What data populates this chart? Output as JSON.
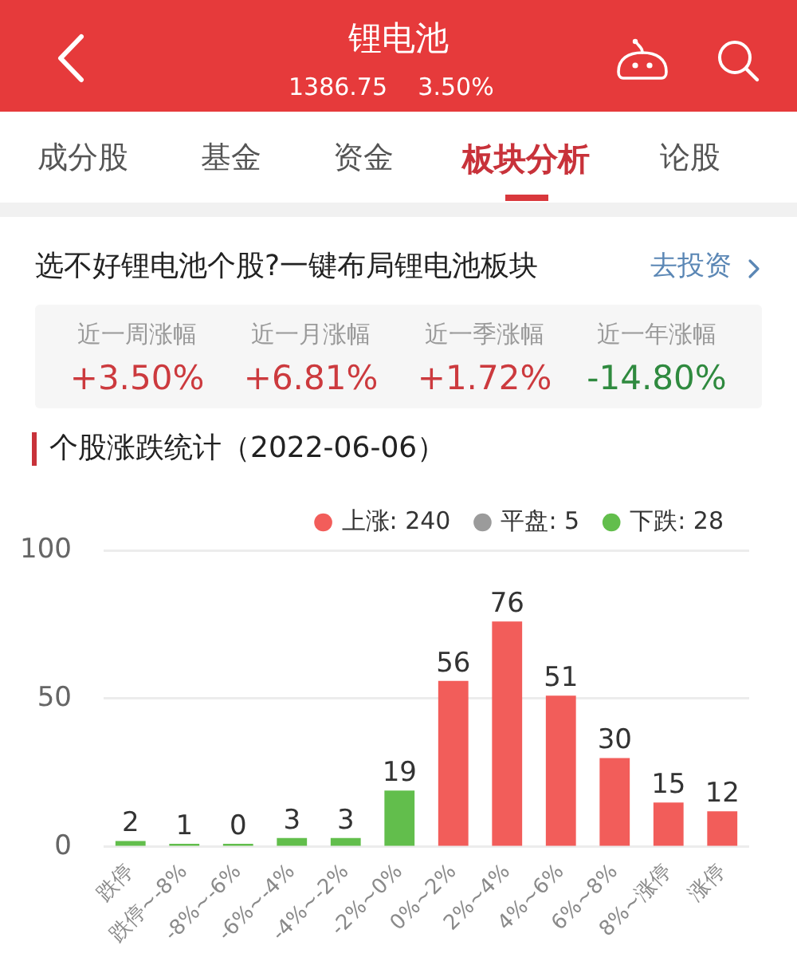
{
  "chart_data": {
    "type": "bar",
    "title": "个股涨跌统计（2022-06-06）",
    "annotations": [
      "锂电池",
      "1386.75",
      "3.50%",
      "成分股",
      "基金",
      "资金",
      "板块分析",
      "论股",
      "选不好锂电池个股?一键布局锂电池板块",
      "去投资",
      "近一周涨幅",
      "+3.50%",
      "近一月涨幅",
      "+6.81%",
      "近一季涨幅",
      "+1.72%",
      "近一年涨幅",
      "-14.80%"
    ],
    "categories": [
      "跌停",
      "跌停~-8%",
      "-8%~-6%",
      "-6%~-4%",
      "-4%~-2%",
      "-2%~0%",
      "0%~2%",
      "2%~4%",
      "4%~6%",
      "6%~8%",
      "8%~涨停",
      "涨停"
    ],
    "series": [
      {
        "name": "上涨: 240",
        "color": "#f25d5a",
        "values": [
          null,
          null,
          null,
          null,
          null,
          null,
          56,
          76,
          51,
          30,
          15,
          12
        ]
      },
      {
        "name": "平盘: 5",
        "color": "#9b9b9b",
        "values": [
          null,
          null,
          null,
          null,
          null,
          null,
          null,
          null,
          null,
          null,
          null,
          null
        ]
      },
      {
        "name": "下跌: 28",
        "color": "#62be4c",
        "values": [
          2,
          1,
          0,
          3,
          3,
          19,
          null,
          null,
          null,
          null,
          null,
          null
        ]
      }
    ],
    "stacked": true,
    "ylim": [
      0,
      100
    ],
    "yticks": [
      0,
      50,
      100
    ],
    "grid": "y",
    "legend": "top right",
    "data_labels": true
  }
}
